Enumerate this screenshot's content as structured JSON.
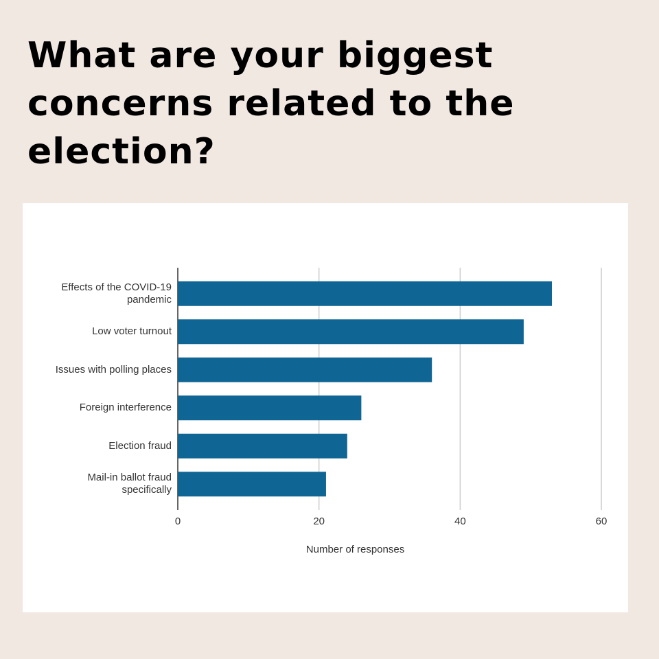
{
  "chart_data": {
    "type": "bar",
    "orientation": "horizontal",
    "title": "What are your biggest concerns related to the election?",
    "categories": [
      "Effects of the COVID-19 pandemic",
      "Low voter turnout",
      "Issues with polling places",
      "Foreign interference",
      "Election fraud",
      "Mail-in ballot fraud specifically"
    ],
    "values": [
      53,
      49,
      36,
      26,
      24,
      21
    ],
    "color": "#0f6594",
    "xlabel": "Number of responses",
    "xlim": [
      0,
      60
    ],
    "xticks": [
      0,
      20,
      40,
      60
    ],
    "grid": true
  }
}
